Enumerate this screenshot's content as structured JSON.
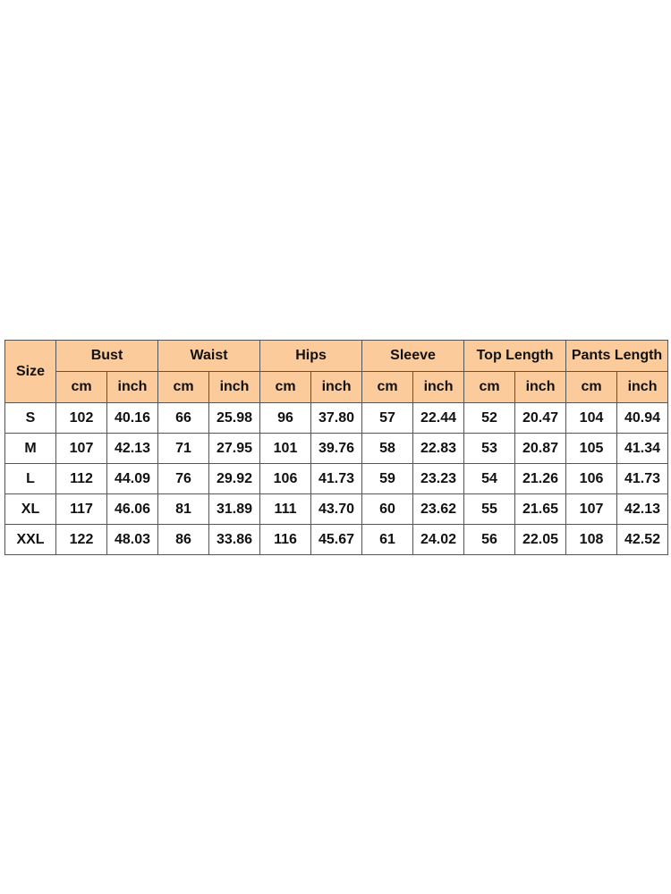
{
  "size_chart": {
    "size_header": "Size",
    "groups": [
      "Bust",
      "Waist",
      "Hips",
      "Sleeve",
      "Top Length",
      "Pants Length"
    ],
    "units": [
      "cm",
      "inch"
    ],
    "header_color": "#fbcb9c",
    "rows": [
      {
        "size": "S",
        "values": [
          "102",
          "40.16",
          "66",
          "25.98",
          "96",
          "37.80",
          "57",
          "22.44",
          "52",
          "20.47",
          "104",
          "40.94"
        ]
      },
      {
        "size": "M",
        "values": [
          "107",
          "42.13",
          "71",
          "27.95",
          "101",
          "39.76",
          "58",
          "22.83",
          "53",
          "20.87",
          "105",
          "41.34"
        ]
      },
      {
        "size": "L",
        "values": [
          "112",
          "44.09",
          "76",
          "29.92",
          "106",
          "41.73",
          "59",
          "23.23",
          "54",
          "21.26",
          "106",
          "41.73"
        ]
      },
      {
        "size": "XL",
        "values": [
          "117",
          "46.06",
          "81",
          "31.89",
          "111",
          "43.70",
          "60",
          "23.62",
          "55",
          "21.65",
          "107",
          "42.13"
        ]
      },
      {
        "size": "XXL",
        "values": [
          "122",
          "48.03",
          "86",
          "33.86",
          "116",
          "45.67",
          "61",
          "24.02",
          "56",
          "22.05",
          "108",
          "42.52"
        ]
      }
    ]
  }
}
